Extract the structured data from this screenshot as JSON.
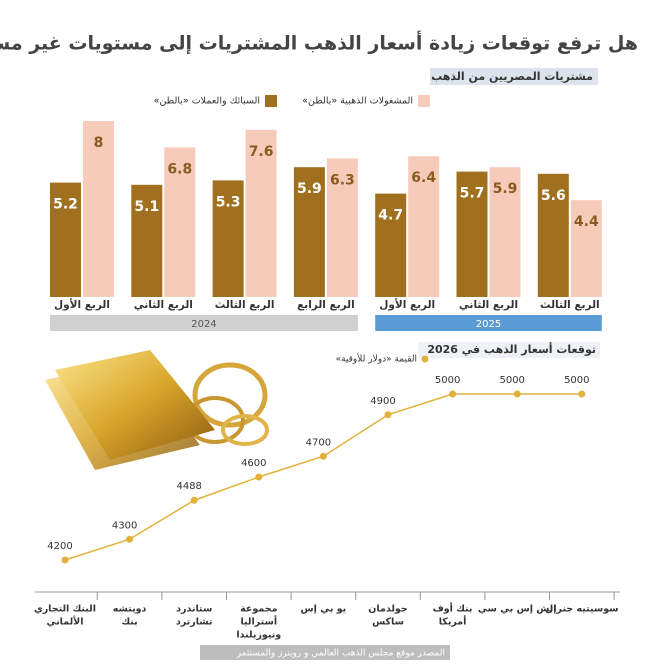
{
  "title": "هل ترفع توقعات زيادة أسعار الذهب المشتريات إلى مستويات غير مسبوقة؟",
  "source": "المصدر موقع مجلس الذهب العالمي و رويترز والمستثمر",
  "chart_data": [
    {
      "type": "bar",
      "subtitle": "مشتريات المصريين من الذهب",
      "groups": [
        {
          "label": "2024",
          "color": "#d0d0d0",
          "categories": [
            "الربع الأول",
            "الربع الثاني",
            "الربع الثالث",
            "الربع الرابع"
          ]
        },
        {
          "label": "2025",
          "color": "#5b9bd5",
          "categories": [
            "الربع الأول",
            "الربع الثاني",
            "الربع الثالث"
          ]
        }
      ],
      "series": [
        {
          "name": "السبائك والعملات «بالطن»",
          "color": "#a0701f",
          "values": [
            5.2,
            5.1,
            5.3,
            5.9,
            4.7,
            5.7,
            5.6
          ]
        },
        {
          "name": "المشغولات الذهبية «بالطن»",
          "color": "#f7cbb9",
          "values": [
            8,
            6.8,
            7.6,
            6.3,
            6.4,
            5.9,
            4.4
          ]
        }
      ]
    },
    {
      "type": "line",
      "title": "توقعات أسعار الذهب في 2026",
      "categories": [
        [
          "البنك التجاري",
          "الألماني"
        ],
        [
          "دويتشه",
          "بنك"
        ],
        [
          "ستاندرد",
          "تشارترد"
        ],
        [
          "مجموعة",
          "أستراليا",
          "ونيوزيلندا"
        ],
        [
          "يو بي إس"
        ],
        [
          "جولدمان",
          "ساكس"
        ],
        [
          "بنك أوف",
          "أمريكا"
        ],
        [
          "إتش إس بي سي"
        ],
        [
          "سوسيتيه جنرال"
        ]
      ],
      "series": [
        {
          "name": "القيمة «دولار للأوقية»",
          "color": "#e2b13c",
          "values": [
            4200,
            4300,
            4488,
            4600,
            4700,
            4900,
            5000,
            5000,
            5000
          ]
        }
      ]
    }
  ]
}
